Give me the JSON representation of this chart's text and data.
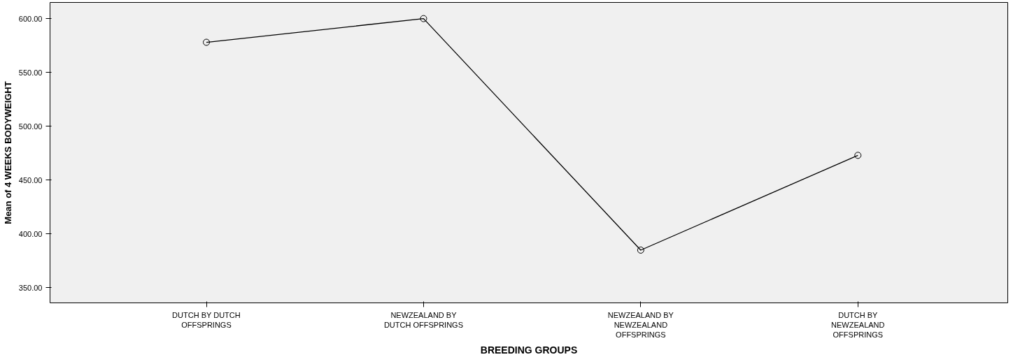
{
  "chart_data": {
    "type": "line",
    "xlabel": "BREEDING GROUPS",
    "ylabel": "Mean of 4 WEEKS BODYWEIGHT",
    "categories": [
      "DUTCH BY DUTCH\nOFFSPRINGS",
      "NEWZEALAND BY\nDUTCH OFFSPRINGS",
      "NEWZEALAND BY\nNEWZEALAND\nOFFSPRINGS",
      "DUTCH BY\nNEWZEALAND\nOFFSPRINGS"
    ],
    "series": [
      {
        "color": "#000000",
        "values": [
          578,
          600,
          385,
          473
        ]
      }
    ],
    "ylim": [
      336,
      615
    ],
    "yticks": [
      {
        "value": 350,
        "label": "350.00"
      },
      {
        "value": 400,
        "label": "400.00"
      },
      {
        "value": 450,
        "label": "450.00"
      },
      {
        "value": 500,
        "label": "500.00"
      },
      {
        "value": 550,
        "label": "550.00"
      },
      {
        "value": 600,
        "label": "600.00"
      }
    ],
    "grid": false,
    "marker": "circle",
    "line_style": "solid"
  }
}
